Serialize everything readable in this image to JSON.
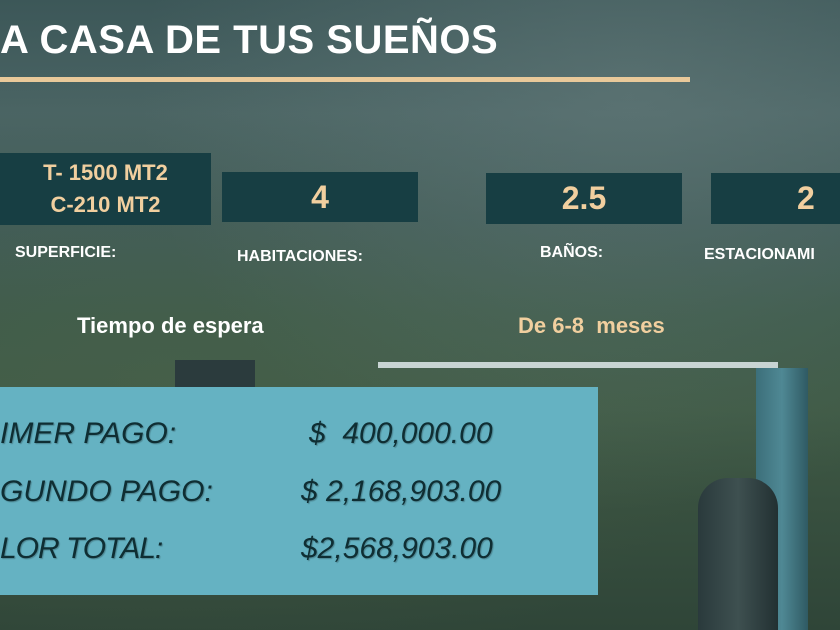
{
  "title": "A CASA DE TUS SUEÑOS",
  "colors": {
    "accent": "#e9c99a",
    "box": "#173e43",
    "payment_panel": "#65b2c2"
  },
  "features": [
    {
      "value_lines": [
        "T- 1500 MT2",
        "C-210 MT2"
      ],
      "label": "SUPERFICIE:"
    },
    {
      "value": "4",
      "label": "HABITACIONES:"
    },
    {
      "value": "2.5",
      "label": "BAÑOS:"
    },
    {
      "value": "2",
      "label": "ESTACIONAMI"
    }
  ],
  "wait": {
    "label": "Tiempo de espera",
    "value": "De 6-8  meses"
  },
  "payments": [
    {
      "label": "IMER PAGO:",
      "amount": "$  400,000.00"
    },
    {
      "label": "GUNDO PAGO:",
      "amount": "$ 2,168,903.00"
    },
    {
      "label": "LOR TOTAL:",
      "amount": "$2,568,903.00"
    }
  ]
}
